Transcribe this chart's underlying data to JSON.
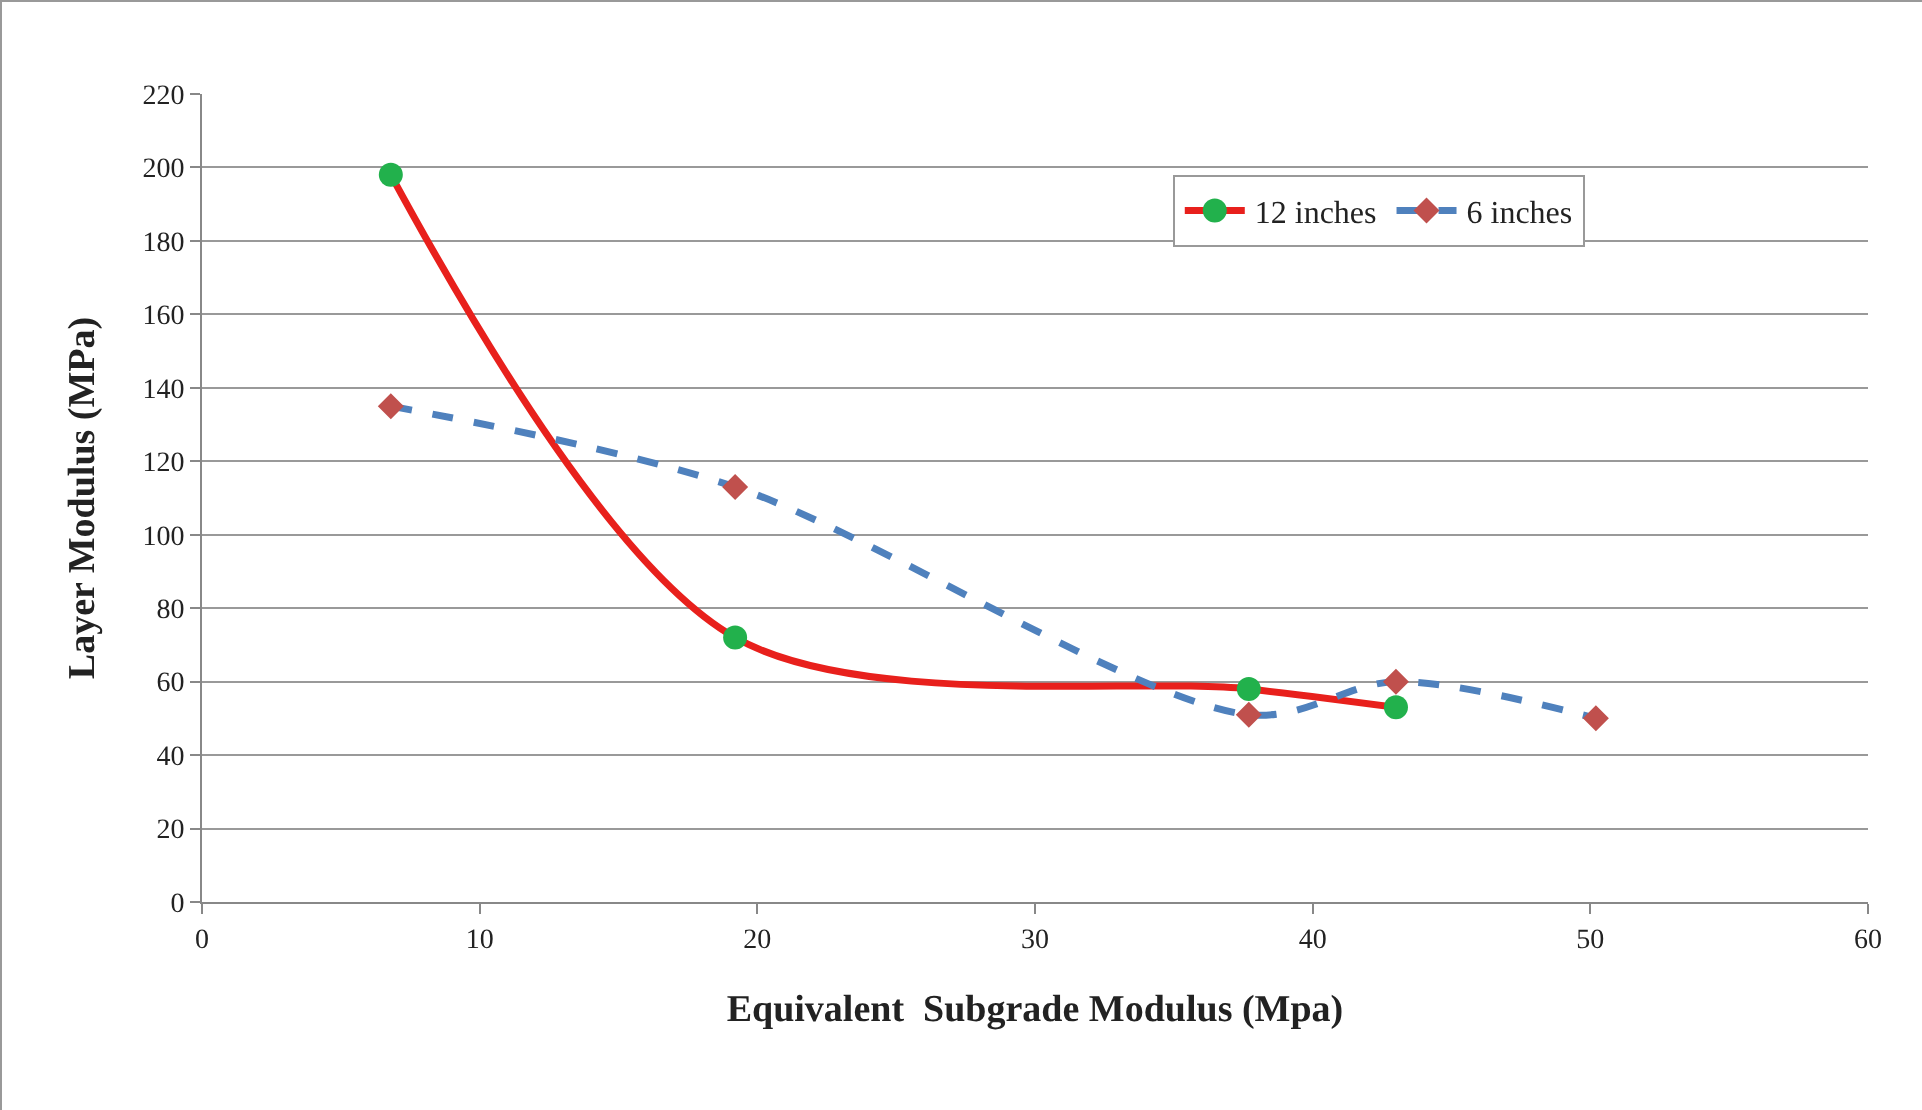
{
  "chart_data": {
    "type": "line",
    "xlabel": "Equivalent  Subgrade Modulus (Mpa)",
    "ylabel": "Layer Modulus (MPa)",
    "xlim": [
      0,
      60
    ],
    "xticks": [
      0,
      10,
      20,
      30,
      40,
      50,
      60
    ],
    "ylim": [
      0,
      220
    ],
    "yticks": [
      0,
      20,
      40,
      60,
      80,
      100,
      120,
      140,
      160,
      180,
      200,
      220
    ],
    "grid": "y",
    "legend": "top right",
    "series": [
      {
        "name": "12 inches",
        "color": "#e8201c",
        "marker": "circle",
        "line_style": "solid",
        "x": [
          6.8,
          19.2,
          37.7,
          43
        ],
        "values": [
          198,
          72,
          58,
          53
        ]
      },
      {
        "name": "6 inches",
        "color": "#4f81bd",
        "marker": "diamond",
        "line_style": "dashed",
        "x": [
          6.8,
          19.2,
          37.7,
          43,
          50.2
        ],
        "values": [
          135,
          113,
          51,
          60,
          50
        ]
      }
    ]
  }
}
